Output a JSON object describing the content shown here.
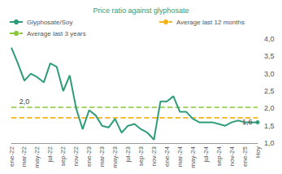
{
  "chart_data": {
    "type": "line",
    "title": "Price ratio against glyphosate",
    "categories": [
      "ene-22",
      null,
      "mar-22",
      null,
      "may-22",
      null,
      "jul-22",
      null,
      "sep-22",
      null,
      "nov-22",
      null,
      "ene-23",
      null,
      "mar-23",
      null,
      "may-23",
      null,
      "jul-23",
      null,
      "sep-23",
      null,
      "nov-23",
      null,
      "ene-24",
      null,
      "mar-24",
      null,
      "may-24",
      null,
      "jul-24",
      null,
      "sep-24",
      null,
      "nov-24",
      null,
      "ene-25",
      null,
      "Hoy"
    ],
    "series": [
      {
        "name": "Glyphosate/Soy",
        "color": "#2e9c7a",
        "line_style": "solid",
        "values": [
          3.75,
          3.3,
          2.8,
          3.0,
          2.9,
          2.75,
          3.3,
          3.2,
          2.5,
          2.95,
          2.0,
          1.4,
          1.95,
          1.8,
          1.5,
          1.45,
          1.7,
          1.3,
          1.5,
          1.55,
          1.4,
          1.3,
          1.1,
          2.2,
          2.2,
          2.35,
          1.9,
          1.9,
          1.7,
          1.6,
          1.6,
          1.6,
          1.55,
          1.5,
          1.6,
          1.65,
          1.6,
          1.6,
          1.6
        ]
      },
      {
        "name": "Average last 12 months",
        "color": "#f5b31b",
        "line_style": "dashed",
        "values": [
          1.73,
          1.73,
          1.73,
          1.73,
          1.73,
          1.73,
          1.73,
          1.73,
          1.73,
          1.73,
          1.73,
          1.73,
          1.73,
          1.73,
          1.73,
          1.73,
          1.73,
          1.73,
          1.73,
          1.73,
          1.73,
          1.73,
          1.73,
          1.73,
          1.73,
          1.73,
          1.73,
          1.73,
          1.73,
          1.73,
          1.73,
          1.73,
          1.73,
          1.73,
          1.73,
          1.73,
          1.73,
          1.73,
          1.73
        ]
      },
      {
        "name": "Average last 3 years",
        "color": "#8cc63f",
        "line_style": "dashed",
        "values": [
          2.03,
          2.03,
          2.03,
          2.03,
          2.03,
          2.03,
          2.03,
          2.03,
          2.03,
          2.03,
          2.03,
          2.03,
          2.03,
          2.03,
          2.03,
          2.03,
          2.03,
          2.03,
          2.03,
          2.03,
          2.03,
          2.03,
          2.03,
          2.03,
          2.03,
          2.03,
          2.03,
          2.03,
          2.03,
          2.03,
          2.03,
          2.03,
          2.03,
          2.03,
          2.03,
          2.03,
          2.03,
          2.03,
          2.03
        ]
      }
    ],
    "annotations": [
      {
        "text": "2,0",
        "series": "Average last 3 years",
        "index": 2
      },
      {
        "text": "1,6",
        "series": "Glyphosate/Soy",
        "index": 38
      }
    ],
    "ylim": [
      1,
      4
    ],
    "yticks": [
      {
        "value": 1,
        "label": "1,0"
      },
      {
        "value": 1.5,
        "label": "1,5"
      },
      {
        "value": 2,
        "label": "2,0"
      },
      {
        "value": 2.5,
        "label": "2,5"
      },
      {
        "value": 3,
        "label": "3,0"
      },
      {
        "value": 3.5,
        "label": "3,5"
      },
      {
        "value": 4,
        "label": "4,0"
      }
    ],
    "grid": false
  }
}
